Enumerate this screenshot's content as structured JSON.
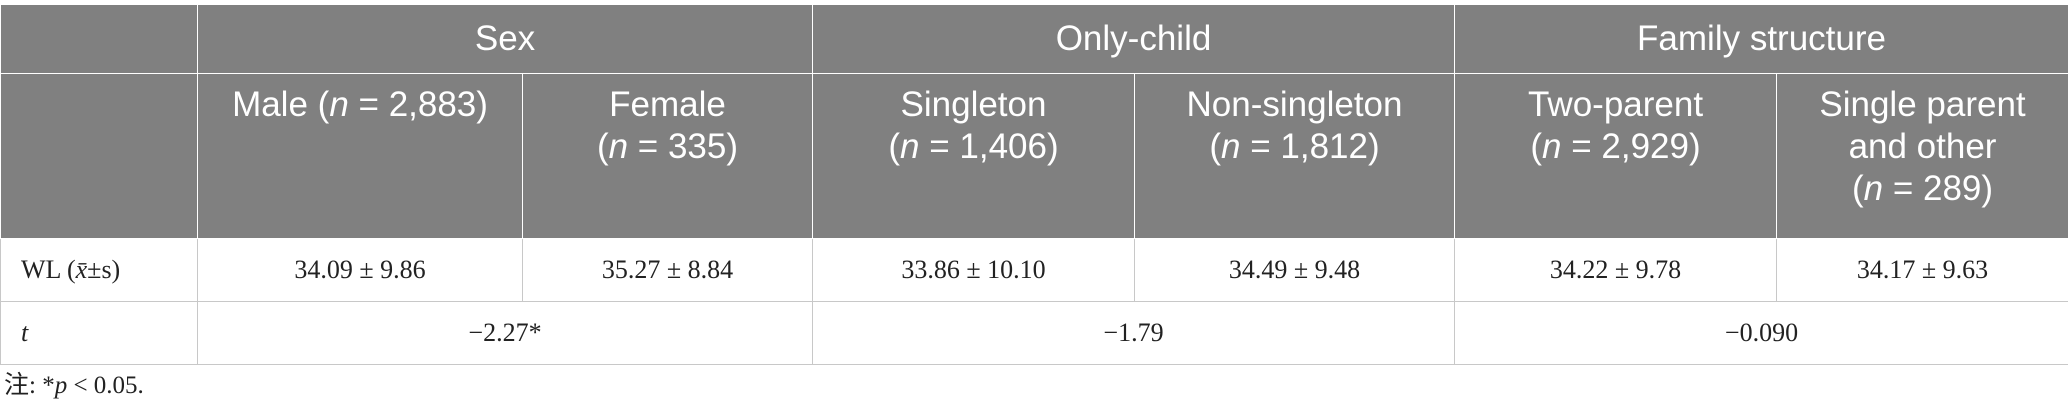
{
  "header": {
    "groups": [
      "Sex",
      "Only-child",
      "Family structure"
    ],
    "subgroups": [
      {
        "label": "Male",
        "n": "2,883"
      },
      {
        "label": "Female",
        "n": "335"
      },
      {
        "label": "Singleton",
        "n": "1,406"
      },
      {
        "label": "Non-singleton",
        "n": "1,812"
      },
      {
        "label": "Two-parent",
        "n": "2,929"
      },
      {
        "label": "Single parent and other",
        "n": "289"
      }
    ],
    "n_symbol": "n",
    "equals": " = "
  },
  "rows": {
    "wl": {
      "label": "WL (",
      "xbar": "x̄",
      "label_tail": "±s)",
      "values": [
        "34.09 ± 9.86",
        "35.27 ± 8.84",
        "33.86 ± 10.10",
        "34.49 ± 9.48",
        "34.22 ± 9.78",
        "34.17 ± 9.63"
      ]
    },
    "t": {
      "label": "t",
      "values": [
        "−2.27*",
        "−1.79",
        "−0.090"
      ]
    }
  },
  "note": {
    "prefix": "注: *",
    "p": "p",
    "rest": " < 0.05."
  }
}
